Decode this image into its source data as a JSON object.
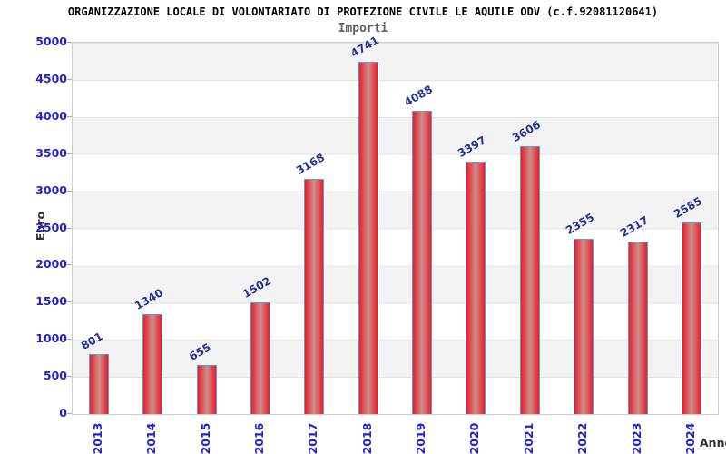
{
  "header": {
    "title": "ORGANIZZAZIONE LOCALE DI VOLONTARIATO DI PROTEZIONE CIVILE LE AQUILE ODV (c.f.92081120641)",
    "subtitle": "Importi"
  },
  "chart_data": {
    "type": "bar",
    "title": "ORGANIZZAZIONE LOCALE DI VOLONTARIATO DI PROTEZIONE CIVILE LE AQUILE ODV (c.f.92081120641)",
    "subtitle": "Importi",
    "xlabel": "Anno",
    "ylabel": "Euro",
    "categories": [
      "2013",
      "2014",
      "2015",
      "2016",
      "2017",
      "2018",
      "2019",
      "2020",
      "2021",
      "2022",
      "2023",
      "2024"
    ],
    "values": [
      801,
      1340,
      655,
      1502,
      3168,
      4741,
      4088,
      3397,
      3606,
      2355,
      2317,
      2585
    ],
    "ylim": [
      0,
      5000
    ],
    "ytick_step": 500,
    "grid": "horizontal-bands",
    "legend": "none",
    "colors": {
      "tick_label": "#2222cc",
      "value_label": "#223399",
      "bar_edge": "#ed1c24",
      "bar_center": "#cb908d",
      "bar_border": "#56a0dd",
      "band_gray": "#f3f3f3",
      "band_white": "#ffffff",
      "plot_border": "#cccccc",
      "title": "#000000",
      "subtitle": "#606060",
      "axis_title": "#333333"
    }
  }
}
